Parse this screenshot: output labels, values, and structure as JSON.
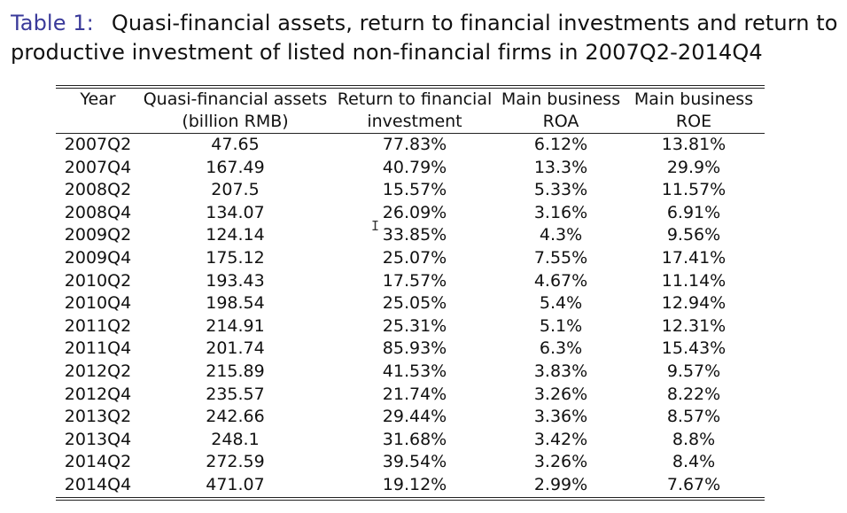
{
  "caption": {
    "label": "Table 1:",
    "line1": "Quasi-financial assets, return to financial investments and return to",
    "line2": "productive investment of listed non-financial firms in 2007Q2-2014Q4"
  },
  "table": {
    "headers": [
      {
        "line1": "Year",
        "line2": ""
      },
      {
        "line1": "Quasi-financial assets",
        "line2": "(billion RMB)"
      },
      {
        "line1": "Return to financial",
        "line2": "investment"
      },
      {
        "line1": "Main business",
        "line2": "ROA"
      },
      {
        "line1": "Main business",
        "line2": "ROE"
      }
    ],
    "rows": [
      [
        "2007Q2",
        "47.65",
        "77.83%",
        "6.12%",
        "13.81%"
      ],
      [
        "2007Q4",
        "167.49",
        "40.79%",
        "13.3%",
        "29.9%"
      ],
      [
        "2008Q2",
        "207.5",
        "15.57%",
        "5.33%",
        "11.57%"
      ],
      [
        "2008Q4",
        "134.07",
        "26.09%",
        "3.16%",
        "6.91%"
      ],
      [
        "2009Q2",
        "124.14",
        "33.85%",
        "4.3%",
        "9.56%"
      ],
      [
        "2009Q4",
        "175.12",
        "25.07%",
        "7.55%",
        "17.41%"
      ],
      [
        "2010Q2",
        "193.43",
        "17.57%",
        "4.67%",
        "11.14%"
      ],
      [
        "2010Q4",
        "198.54",
        "25.05%",
        "5.4%",
        "12.94%"
      ],
      [
        "2011Q2",
        "214.91",
        "25.31%",
        "5.1%",
        "12.31%"
      ],
      [
        "2011Q4",
        "201.74",
        "85.93%",
        "6.3%",
        "15.43%"
      ],
      [
        "2012Q2",
        "215.89",
        "41.53%",
        "3.83%",
        "9.57%"
      ],
      [
        "2012Q4",
        "235.57",
        "21.74%",
        "3.26%",
        "8.22%"
      ],
      [
        "2013Q2",
        "242.66",
        "29.44%",
        "3.36%",
        "8.57%"
      ],
      [
        "2013Q4",
        "248.1",
        "31.68%",
        "3.42%",
        "8.8%"
      ],
      [
        "2014Q2",
        "272.59",
        "39.54%",
        "3.26%",
        "8.4%"
      ],
      [
        "2014Q4",
        "471.07",
        "19.12%",
        "2.99%",
        "7.67%"
      ]
    ]
  },
  "cursor": {
    "icon": "text-cursor-icon",
    "glyph": "I"
  }
}
